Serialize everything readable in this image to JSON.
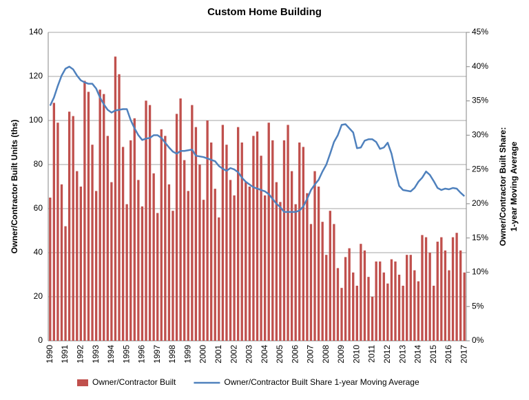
{
  "chart_data": {
    "type": "bar-line",
    "title": "Custom Home Building",
    "y_label": "Owner/Contractor Built Units (ths)",
    "y2_label": [
      "Owner/Contractor Built Share:",
      "1-year Moving Average"
    ],
    "categories": [
      "1990",
      null,
      null,
      null,
      "1991",
      null,
      null,
      null,
      "1992",
      null,
      null,
      null,
      "1993",
      null,
      null,
      null,
      "1994",
      null,
      null,
      null,
      "1995",
      null,
      null,
      null,
      "1996",
      null,
      null,
      null,
      "1997",
      null,
      null,
      null,
      "1998",
      null,
      null,
      null,
      "1999",
      null,
      null,
      null,
      "2000",
      null,
      null,
      null,
      "2001",
      null,
      null,
      null,
      "2002",
      null,
      null,
      null,
      "2003",
      null,
      null,
      null,
      "2004",
      null,
      null,
      null,
      "2005",
      null,
      null,
      null,
      "2006",
      null,
      null,
      null,
      "2007",
      null,
      null,
      null,
      "2008",
      null,
      null,
      null,
      "2009",
      null,
      null,
      null,
      "2010",
      null,
      null,
      null,
      "2011",
      null,
      null,
      null,
      "2012",
      null,
      null,
      null,
      "2013",
      null,
      null,
      null,
      "2014",
      null,
      null,
      null,
      "2015",
      null,
      null,
      null,
      "2016",
      null,
      null,
      null,
      "2017"
    ],
    "series": [
      {
        "name": "Owner/Contractor Built",
        "type": "bar",
        "axis": "y",
        "color": "#c0504d",
        "values": [
          65,
          108,
          99,
          71,
          52,
          104,
          102,
          77,
          70,
          118,
          113,
          89,
          68,
          114,
          112,
          93,
          72,
          129,
          121,
          88,
          62,
          91,
          101,
          73,
          61,
          109,
          107,
          76,
          58,
          96,
          93,
          71,
          59,
          103,
          110,
          82,
          68,
          107,
          97,
          80,
          64,
          100,
          90,
          69,
          56,
          98,
          89,
          73,
          66,
          97,
          90,
          72,
          70,
          93,
          95,
          84,
          66,
          99,
          91,
          72,
          63,
          91,
          98,
          77,
          62,
          90,
          88,
          67,
          53,
          77,
          70,
          54,
          39,
          59,
          53,
          33,
          24,
          38,
          42,
          31,
          25,
          44,
          41,
          29,
          20,
          36,
          36,
          31,
          26,
          37,
          36,
          30,
          25,
          39,
          39,
          32,
          27,
          48,
          47,
          40,
          25,
          45,
          47,
          41,
          32,
          47,
          49,
          41,
          31
        ]
      },
      {
        "name": "Owner/Contractor Built Share 1-year Moving Average",
        "type": "line",
        "axis": "y2",
        "color": "#4f81bd",
        "values": [
          34.3,
          35.5,
          37.2,
          38.7,
          39.7,
          40.0,
          39.6,
          38.7,
          38.0,
          37.7,
          37.5,
          37.5,
          36.8,
          35.5,
          34.5,
          33.7,
          33.3,
          33.6,
          33.7,
          33.8,
          33.8,
          32.2,
          31.0,
          30.0,
          29.3,
          29.5,
          29.6,
          30.0,
          30.0,
          29.6,
          28.9,
          28.2,
          27.6,
          27.3,
          27.7,
          27.7,
          27.8,
          27.9,
          27.0,
          26.9,
          26.8,
          26.6,
          26.4,
          26.2,
          25.5,
          25.1,
          24.8,
          25.2,
          25.0,
          24.6,
          23.8,
          23.2,
          22.8,
          22.4,
          22.2,
          22.0,
          21.8,
          21.4,
          20.7,
          20.0,
          19.5,
          18.8,
          18.8,
          18.8,
          18.8,
          19.0,
          19.6,
          20.7,
          22.0,
          22.8,
          23.5,
          24.7,
          25.7,
          27.3,
          29.0,
          30.0,
          31.5,
          31.6,
          31.0,
          30.4,
          28.1,
          28.2,
          29.2,
          29.4,
          29.4,
          29.0,
          28.0,
          28.2,
          28.9,
          27.3,
          24.8,
          22.6,
          22.0,
          21.9,
          21.8,
          22.3,
          23.2,
          23.8,
          24.7,
          24.2,
          23.3,
          22.3,
          22.0,
          22.2,
          22.1,
          22.3,
          22.2,
          21.6,
          21.1
        ]
      }
    ],
    "ylim": [
      0,
      140
    ],
    "yticks": [
      0,
      20,
      40,
      60,
      80,
      100,
      120,
      140
    ],
    "y2lim": [
      0,
      45
    ],
    "y2ticks": [
      {
        "value": 0,
        "label": "0%"
      },
      {
        "value": 5,
        "label": "5%"
      },
      {
        "value": 10,
        "label": "10%"
      },
      {
        "value": 15,
        "label": "15%"
      },
      {
        "value": 20,
        "label": "20%"
      },
      {
        "value": 25,
        "label": "25%"
      },
      {
        "value": 30,
        "label": "30%"
      },
      {
        "value": 35,
        "label": "35%"
      },
      {
        "value": 40,
        "label": "40%"
      },
      {
        "value": 45,
        "label": "45%"
      }
    ],
    "grid": true,
    "legend": "bottom"
  }
}
